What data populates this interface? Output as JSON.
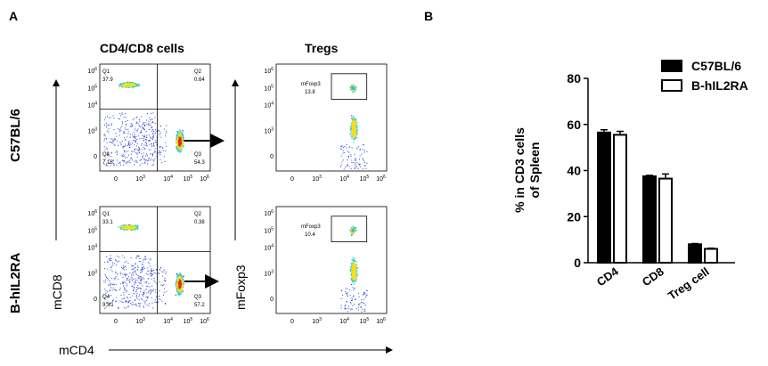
{
  "panel_a": {
    "letter": "A",
    "title_cd4cd8": "CD4/CD8 cells",
    "title_tregs": "Tregs",
    "row_labels": [
      "C57BL/6",
      "B-hIL2RA"
    ],
    "x_axis_name": "mCD4",
    "y_axis_cd8": "mCD8",
    "y_axis_foxp3": "mFoxp3",
    "tick_labels_y": [
      "10^6",
      "10^5",
      "10^4",
      "10^3",
      "0"
    ],
    "tick_labels_x": [
      "0",
      "10^3",
      "10^4",
      "10^5",
      "10^6"
    ],
    "plots": [
      {
        "q1_label": "Q1",
        "q1_value": "37.9",
        "q2_label": "Q2",
        "q2_value": "0.64",
        "q3_label": "Q3",
        "q3_value": "54.3",
        "q4_label": "Q4",
        "q4_value": "7.16"
      },
      {
        "q1_label": "Q1",
        "q1_value": "33.1",
        "q2_label": "Q2",
        "q2_value": "0.38",
        "q3_label": "Q3",
        "q3_value": "57.2",
        "q4_label": "Q4",
        "q4_value": "9.30"
      }
    ],
    "tregs": [
      {
        "gate_label": "mFoxp3",
        "gate_value": "13.8"
      },
      {
        "gate_label": "mFoxp3",
        "gate_value": "10.4"
      }
    ],
    "colors": {
      "dots_low": "#2b3fd6",
      "dots_mid": "#27c2d9",
      "dots_hi": "#f0e020",
      "dots_peak": "#e8281e"
    }
  },
  "chart_data": {
    "type": "bar",
    "panel_letter": "B",
    "categories": [
      "CD4",
      "CD8",
      "Treg cell"
    ],
    "series": [
      {
        "name": "C57BL/6",
        "values": [
          56.5,
          37.5,
          8.0
        ],
        "errors": [
          1.2,
          0.4,
          0.3
        ],
        "color": "#000000"
      },
      {
        "name": "B-hIL2RA",
        "values": [
          55.5,
          36.5,
          6.0
        ],
        "errors": [
          1.5,
          2.0,
          0.3
        ],
        "color": "#ffffff"
      }
    ],
    "ylabel_line1": "% in CD3 cells",
    "ylabel_line2": "of Spleen",
    "ylim": [
      0,
      80
    ],
    "yticks": [
      "0",
      "20",
      "40",
      "60",
      "80"
    ],
    "legend_placement": "top-right"
  }
}
